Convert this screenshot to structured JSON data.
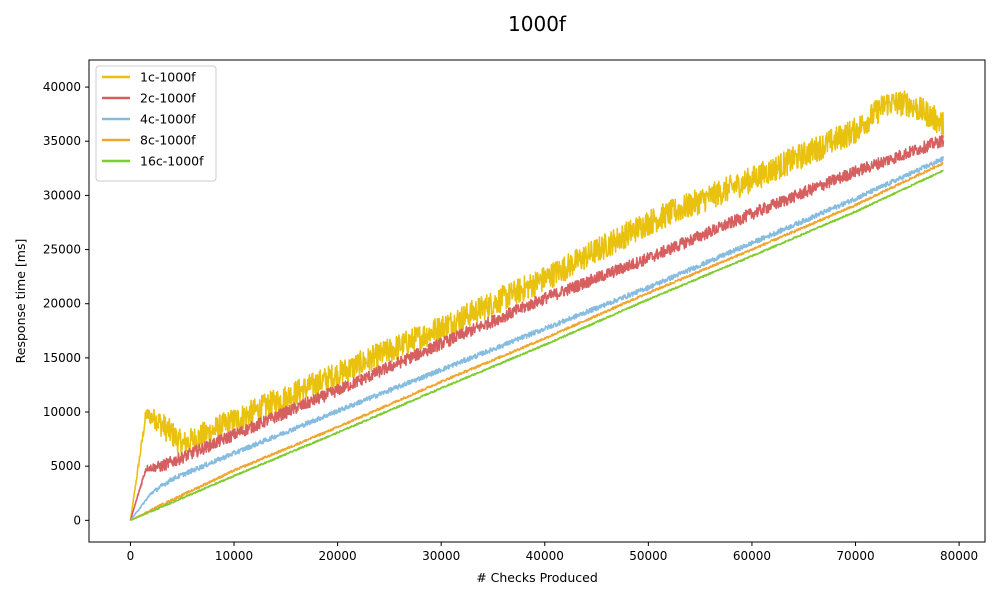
{
  "chart_data": {
    "type": "line",
    "title": "1000f",
    "xlabel": "# Checks Produced",
    "ylabel": "Response time [ms]",
    "xlim": [
      -4000,
      82500
    ],
    "ylim": [
      -2000,
      42500
    ],
    "xticks": [
      0,
      10000,
      20000,
      30000,
      40000,
      50000,
      60000,
      70000,
      80000
    ],
    "xtick_labels": [
      "0",
      "10000",
      "20000",
      "30000",
      "40000",
      "50000",
      "60000",
      "70000",
      "80000"
    ],
    "yticks": [
      0,
      5000,
      10000,
      15000,
      20000,
      25000,
      30000,
      35000,
      40000
    ],
    "ytick_labels": [
      "0",
      "5000",
      "10000",
      "15000",
      "20000",
      "25000",
      "30000",
      "35000",
      "40000"
    ],
    "grid": false,
    "legend_position": "top-left",
    "series": [
      {
        "name": "1c-1000f",
        "color": "#e8c20f",
        "points": [
          [
            0,
            0
          ],
          [
            1500,
            9800
          ],
          [
            2500,
            9300
          ],
          [
            4000,
            8000
          ],
          [
            5000,
            7000
          ],
          [
            6000,
            7400
          ],
          [
            10000,
            9200
          ],
          [
            20000,
            13500
          ],
          [
            30000,
            17800
          ],
          [
            40000,
            22300
          ],
          [
            50000,
            27500
          ],
          [
            60000,
            31500
          ],
          [
            70000,
            36000
          ],
          [
            73000,
            38500
          ],
          [
            75000,
            38500
          ],
          [
            77000,
            37500
          ],
          [
            78500,
            36500
          ]
        ],
        "noise": 1200
      },
      {
        "name": "2c-1000f",
        "color": "#d66060",
        "points": [
          [
            0,
            0
          ],
          [
            1500,
            4800
          ],
          [
            3000,
            5000
          ],
          [
            5000,
            5800
          ],
          [
            10000,
            7900
          ],
          [
            20000,
            12000
          ],
          [
            30000,
            16300
          ],
          [
            40000,
            20500
          ],
          [
            50000,
            24200
          ],
          [
            60000,
            28300
          ],
          [
            70000,
            32200
          ],
          [
            78500,
            35100
          ]
        ],
        "noise": 550
      },
      {
        "name": "4c-1000f",
        "color": "#85bcdf",
        "points": [
          [
            0,
            0
          ],
          [
            2000,
            2500
          ],
          [
            4000,
            3800
          ],
          [
            6000,
            4600
          ],
          [
            10000,
            6200
          ],
          [
            20000,
            10100
          ],
          [
            30000,
            13900
          ],
          [
            40000,
            17700
          ],
          [
            50000,
            21500
          ],
          [
            60000,
            25600
          ],
          [
            70000,
            29700
          ],
          [
            78500,
            33400
          ]
        ],
        "noise": 220
      },
      {
        "name": "8c-1000f",
        "color": "#f2a52c",
        "points": [
          [
            0,
            0
          ],
          [
            2500,
            1200
          ],
          [
            10000,
            4600
          ],
          [
            20000,
            8600
          ],
          [
            30000,
            12800
          ],
          [
            40000,
            16800
          ],
          [
            50000,
            21000
          ],
          [
            60000,
            25000
          ],
          [
            70000,
            29100
          ],
          [
            78500,
            33000
          ]
        ],
        "noise": 100
      },
      {
        "name": "16c-1000f",
        "color": "#7fcc2e",
        "points": [
          [
            0,
            0
          ],
          [
            10000,
            4100
          ],
          [
            20000,
            8100
          ],
          [
            30000,
            12200
          ],
          [
            40000,
            16200
          ],
          [
            50000,
            20400
          ],
          [
            60000,
            24400
          ],
          [
            70000,
            28500
          ],
          [
            78500,
            32300
          ]
        ],
        "noise": 70
      }
    ]
  }
}
